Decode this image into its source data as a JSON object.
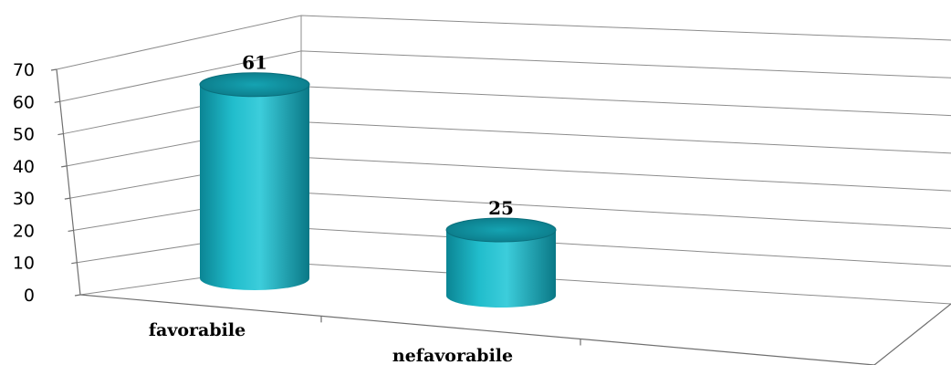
{
  "chart_data": {
    "type": "bar",
    "style": "3d-cylinder",
    "categories": [
      "favorabile",
      "nefavorabile"
    ],
    "values": [
      61,
      25
    ],
    "ylim": [
      0,
      70
    ],
    "yticks": [
      0,
      10,
      20,
      30,
      40,
      50,
      60,
      70
    ],
    "grid": true,
    "legend": "none",
    "colors": {
      "bar": "#19b6c6",
      "bar_top": "#0d7f8d",
      "grid": "#8c8c8c"
    }
  }
}
